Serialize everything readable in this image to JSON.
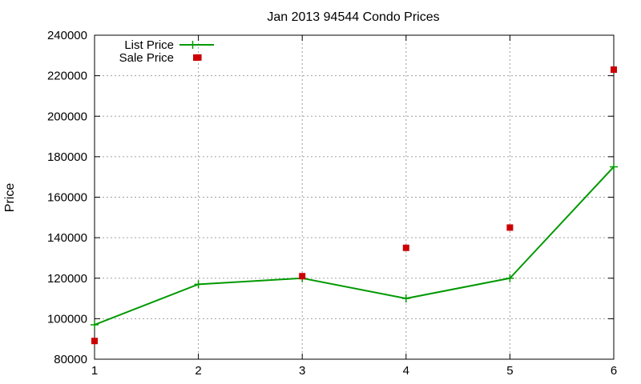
{
  "chart_data": {
    "type": "line",
    "title": "Jan 2013 94544 Condo Prices",
    "xlabel": "",
    "ylabel": "Price",
    "xlim": [
      1,
      6
    ],
    "ylim": [
      80000,
      240000
    ],
    "x_ticks": [
      1,
      2,
      3,
      4,
      5,
      6
    ],
    "y_ticks": [
      80000,
      100000,
      120000,
      140000,
      160000,
      180000,
      200000,
      220000,
      240000
    ],
    "grid": true,
    "legend_position": "top-left",
    "series": [
      {
        "name": "List Price",
        "style": "line-with-plus-markers",
        "color": "#009900",
        "x": [
          1,
          2,
          3,
          4,
          5,
          6
        ],
        "y": [
          97000,
          117000,
          120000,
          110000,
          120000,
          175000
        ]
      },
      {
        "name": "Sale Price",
        "style": "square-markers",
        "color": "#cc0000",
        "x": [
          1,
          2,
          3,
          4,
          5,
          6
        ],
        "y": [
          89000,
          229000,
          121000,
          135000,
          145000,
          223000
        ]
      }
    ]
  }
}
